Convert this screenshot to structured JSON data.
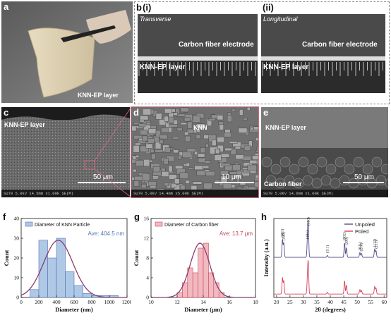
{
  "panel_labels": {
    "a": "a",
    "b": "b",
    "bi": "(i)",
    "bii": "(ii)",
    "c": "c",
    "d": "d",
    "e": "e",
    "f": "f",
    "g": "g",
    "h": "h"
  },
  "a": {
    "caption": "KNN-EP layer"
  },
  "b": {
    "i": {
      "title": "Transverse",
      "electrode": "Carbon fiber electrode",
      "layer": "KNN-EP layer"
    },
    "ii": {
      "title": "Longitudinal",
      "electrode": "Carbon fiber electrode",
      "layer": "KNN-EP layer"
    }
  },
  "c": {
    "caption": "KNN-EP layer",
    "scale": "50 μm",
    "footer": "SU70 5.0kV 14.5mm x1.00k SE(M)"
  },
  "d": {
    "caption": "KNN",
    "scale": "10 μm",
    "footer": "SU70 5.0kV 14.4mm x5.00k SE(M)"
  },
  "e": {
    "caption": "KNN-EP layer",
    "fiber": "Carbon fiber",
    "scale": "50 μm",
    "footer": "SU70 5.0kV 14.6mm x1.00k SE(M)"
  },
  "colors": {
    "blue": "#aec8e6",
    "blue_edge": "#4f74b0",
    "pink": "#f3b9c0",
    "pink_edge": "#c0475a",
    "curve": "#8a3c6e",
    "unpoled": "#5a4a8a",
    "poled": "#d6405a"
  },
  "chart_data": [
    {
      "type": "bar",
      "panel": "f",
      "legend": "Diameter of KNN Particle",
      "annotation": "Ave: 404.5 nm",
      "xlabel": "Diameter (nm)",
      "ylabel": "Count",
      "xlim": [
        0,
        1200
      ],
      "ylim": [
        0,
        40
      ],
      "xticks": [
        "0",
        "200",
        "400",
        "600",
        "800",
        "1000",
        "1200"
      ],
      "yticks": [
        "0",
        "10",
        "20",
        "30",
        "40"
      ],
      "bin_width": 100,
      "bins": [
        {
          "x0": 100,
          "count": 4
        },
        {
          "x0": 200,
          "count": 29
        },
        {
          "x0": 300,
          "count": 20
        },
        {
          "x0": 400,
          "count": 30
        },
        {
          "x0": 500,
          "count": 13
        },
        {
          "x0": 600,
          "count": 6
        },
        {
          "x0": 700,
          "count": 2
        },
        {
          "x0": 800,
          "count": 1
        },
        {
          "x0": 900,
          "count": 1
        },
        {
          "x0": 1000,
          "count": 1
        }
      ],
      "fit": {
        "mean": 420,
        "sd": 165,
        "peak": 29
      }
    },
    {
      "type": "bar",
      "panel": "g",
      "legend": "Diameter of Carbon fiber",
      "annotation": "Ave: 13.7 μm",
      "xlabel": "Diameter (μm)",
      "ylabel": "Count",
      "xlim": [
        10,
        18
      ],
      "ylim": [
        0,
        16
      ],
      "xticks": [
        "10",
        "12",
        "14",
        "16",
        "18"
      ],
      "yticks": [
        "0",
        "4",
        "8",
        "12",
        "16"
      ],
      "bin_width": 0.4,
      "bins": [
        {
          "x0": 12.0,
          "count": 1
        },
        {
          "x0": 12.4,
          "count": 3
        },
        {
          "x0": 12.8,
          "count": 6
        },
        {
          "x0": 13.2,
          "count": 5
        },
        {
          "x0": 13.6,
          "count": 10
        },
        {
          "x0": 14.0,
          "count": 11
        },
        {
          "x0": 14.4,
          "count": 5
        },
        {
          "x0": 14.8,
          "count": 3
        },
        {
          "x0": 15.2,
          "count": 1
        }
      ],
      "fit": {
        "mean": 13.75,
        "sd": 0.75,
        "peak": 11
      }
    },
    {
      "type": "line",
      "panel": "h",
      "xlabel": "2θ (degrees)",
      "ylabel": "Intensity (a.u.)",
      "xlim": [
        19,
        61
      ],
      "xticks": [
        "20",
        "25",
        "30",
        "35",
        "40",
        "45",
        "50",
        "55",
        "60"
      ],
      "series": [
        {
          "name": "Unpoled"
        },
        {
          "name": "Poled"
        }
      ],
      "peaks": [
        {
          "label": "(001)",
          "x": 22.2,
          "h": 0.55
        },
        {
          "label": "(100)",
          "x": 22.7,
          "h": 0.45
        },
        {
          "label": "(110)",
          "x": 31.8,
          "h": 1.0
        },
        {
          "label": "(101)",
          "x": 31.5,
          "h": 0.5
        },
        {
          "label": "(111)",
          "x": 38.9,
          "h": 0.06
        },
        {
          "label": "(002)",
          "x": 45.3,
          "h": 0.45
        },
        {
          "label": "(200)",
          "x": 46.0,
          "h": 0.3
        },
        {
          "label": "(021)",
          "x": 51.0,
          "h": 0.15
        },
        {
          "label": "(210)",
          "x": 51.6,
          "h": 0.12
        },
        {
          "label": "(112)",
          "x": 56.5,
          "h": 0.25
        },
        {
          "label": "(211)",
          "x": 57.0,
          "h": 0.2
        }
      ]
    }
  ]
}
